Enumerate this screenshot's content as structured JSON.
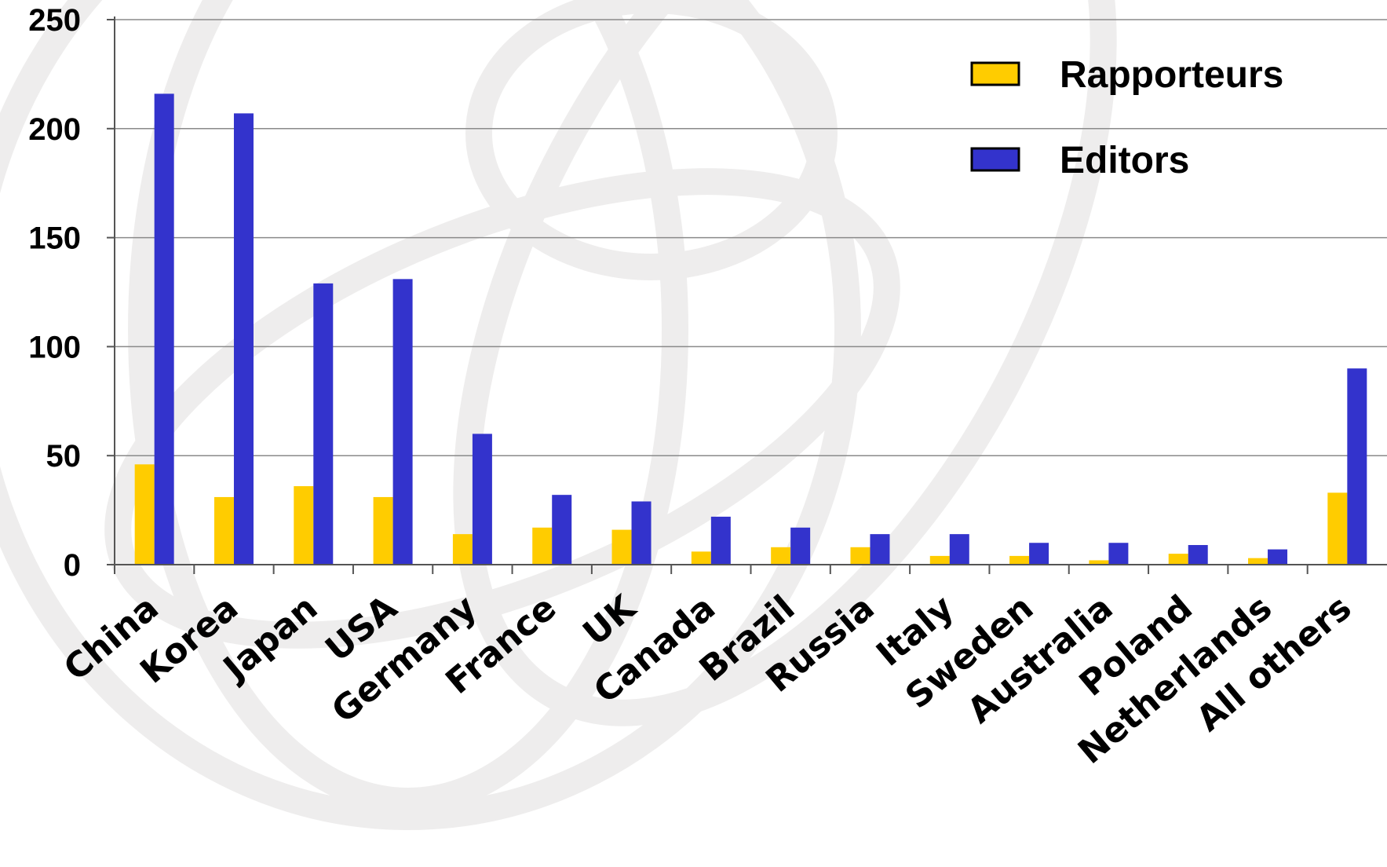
{
  "chart_data": {
    "type": "bar",
    "categories": [
      "China",
      "Korea",
      "Japan",
      "USA",
      "Germany",
      "France",
      "UK",
      "Canada",
      "Brazil",
      "Russia",
      "Italy",
      "Sweden",
      "Australia",
      "Poland",
      "Netherlands",
      "All others"
    ],
    "series": [
      {
        "name": "Rapporteurs",
        "color": "#ffcc00",
        "values": [
          46,
          31,
          36,
          31,
          14,
          17,
          16,
          6,
          8,
          8,
          4,
          4,
          2,
          5,
          3,
          33
        ]
      },
      {
        "name": "Editors",
        "color": "#3333cc",
        "values": [
          216,
          207,
          129,
          131,
          60,
          32,
          29,
          22,
          17,
          14,
          14,
          10,
          10,
          9,
          7,
          90
        ]
      }
    ],
    "ylim": [
      0,
      250
    ],
    "yticks": [
      0,
      50,
      100,
      150,
      200,
      250
    ],
    "grid": true,
    "legend_position": "top-right",
    "title": "",
    "xlabel": "",
    "ylabel": ""
  }
}
